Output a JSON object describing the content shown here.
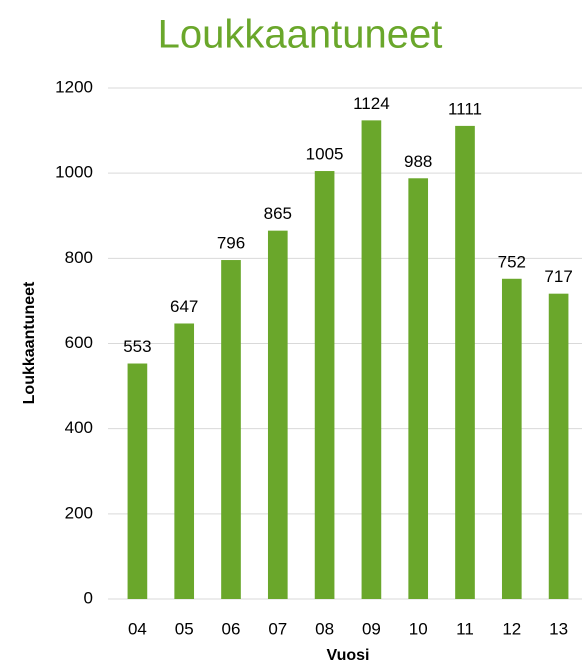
{
  "chart_data": {
    "type": "bar",
    "title": "Loukkaantuneet",
    "x_label": "Vuosi",
    "y_label": "Loukkaantuneet",
    "categories": [
      "04",
      "05",
      "06",
      "07",
      "08",
      "09",
      "10",
      "11",
      "12",
      "13"
    ],
    "values": [
      553,
      647,
      796,
      865,
      1005,
      1124,
      988,
      1111,
      752,
      717
    ],
    "color": "#6aa72b",
    "ylim": [
      0,
      1200
    ],
    "yticks": [
      0,
      200,
      400,
      600,
      800,
      1000,
      1200
    ],
    "grid": true
  }
}
